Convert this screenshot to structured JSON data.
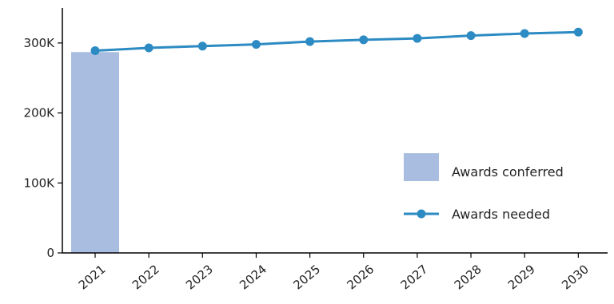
{
  "chart_data": {
    "type": "bar+line",
    "categories": [
      "2021",
      "2022",
      "2023",
      "2024",
      "2025",
      "2026",
      "2027",
      "2028",
      "2029",
      "2030"
    ],
    "series": [
      {
        "name": "Awards conferred",
        "type": "bar",
        "color": "#a9bde0",
        "values": [
          287000,
          null,
          null,
          null,
          null,
          null,
          null,
          null,
          null,
          null
        ]
      },
      {
        "name": "Awards needed",
        "type": "line",
        "color": "#2d8bc3",
        "values": [
          289000,
          293000,
          295500,
          298000,
          302000,
          304500,
          306500,
          310500,
          313500,
          315500
        ]
      }
    ],
    "ylim": [
      0,
      350000
    ],
    "y_ticks": [
      0,
      100000,
      200000,
      300000
    ],
    "y_tick_labels": [
      "0",
      "100K",
      "200K",
      "300K"
    ],
    "legend_placement": "lower-right",
    "grid": false
  }
}
